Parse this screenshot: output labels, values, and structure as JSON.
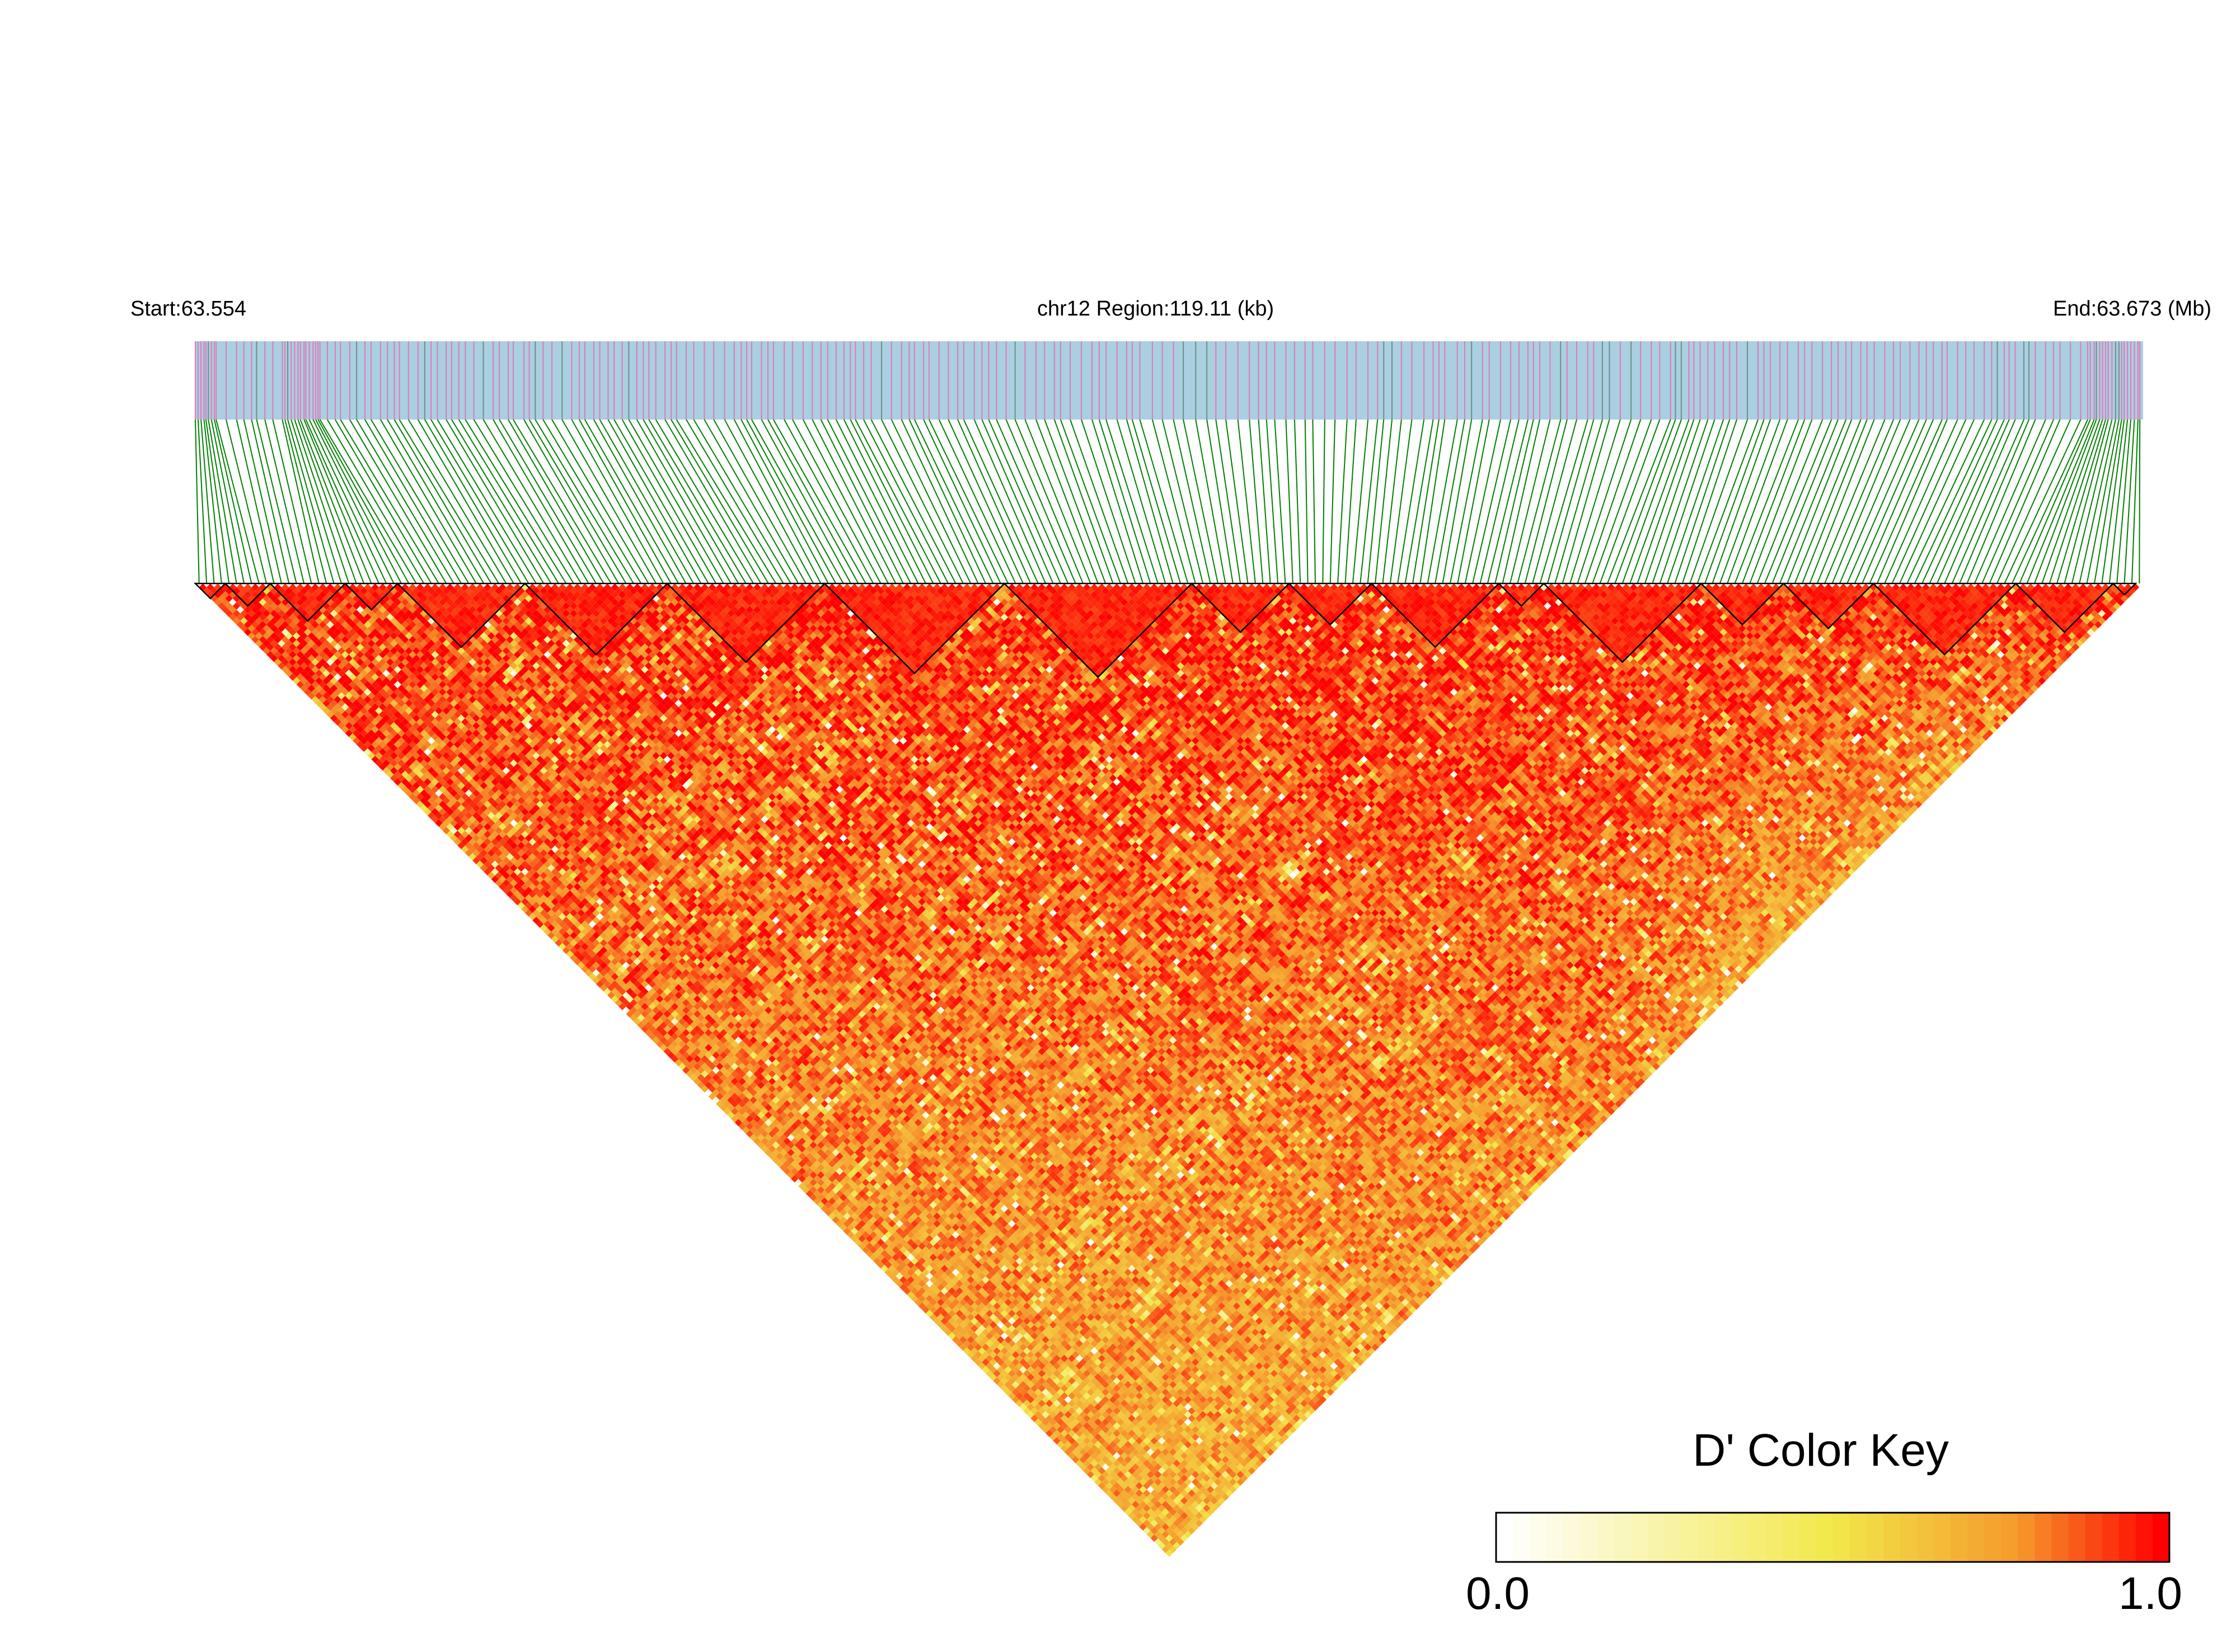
{
  "chart_data": {
    "type": "heatmap",
    "subtype": "linkage-disequilibrium-triangle",
    "header": {
      "start_label": "Start:63.554",
      "region_label": "chr12 Region:119.11 (kb)",
      "end_label": "End:63.673 (Mb)"
    },
    "region": {
      "chromosome": "chr12",
      "start_mb": 63.554,
      "end_mb": 63.673,
      "length_kb": 119.11
    },
    "color_key": {
      "title": "D' Color Key",
      "min_label": "0.0",
      "max_label": "1.0",
      "min": 0.0,
      "max": 1.0,
      "stops": [
        "#ffffff",
        "#f2e84a",
        "#f59a2c",
        "#ff0000"
      ]
    },
    "colors": {
      "gene_track": "#a9cfe1",
      "variant_line": "#e07ab8",
      "dense_line": "#6e8f86",
      "connector": "#008000",
      "block_outline": "#000000"
    },
    "n_markers": 260,
    "block_boundaries": [
      0,
      4,
      10,
      20,
      27,
      44,
      63,
      84,
      108,
      133,
      146,
      157,
      174,
      180,
      201,
      212,
      224,
      243,
      256,
      259
    ],
    "strong_ld_zone_fraction": 0.72
  }
}
